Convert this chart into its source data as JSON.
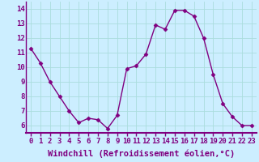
{
  "x": [
    0,
    1,
    2,
    3,
    4,
    5,
    6,
    7,
    8,
    9,
    10,
    11,
    12,
    13,
    14,
    15,
    16,
    17,
    18,
    19,
    20,
    21,
    22,
    23
  ],
  "y": [
    11.3,
    10.3,
    9.0,
    8.0,
    7.0,
    6.2,
    6.5,
    6.4,
    5.8,
    6.7,
    9.9,
    10.1,
    10.9,
    12.9,
    12.6,
    13.9,
    13.9,
    13.5,
    12.0,
    9.5,
    7.5,
    6.6,
    6.0,
    6.0
  ],
  "line_color": "#800080",
  "marker": "D",
  "markersize": 2.5,
  "linewidth": 1.0,
  "bg_color": "#cceeff",
  "grid_color": "#aadddd",
  "xlabel": "Windchill (Refroidissement éolien,°C)",
  "xlabel_fontsize": 7.5,
  "ylim": [
    5.5,
    14.5
  ],
  "xlim": [
    -0.5,
    23.5
  ],
  "yticks": [
    6,
    7,
    8,
    9,
    10,
    11,
    12,
    13,
    14
  ],
  "xticks": [
    0,
    1,
    2,
    3,
    4,
    5,
    6,
    7,
    8,
    9,
    10,
    11,
    12,
    13,
    14,
    15,
    16,
    17,
    18,
    19,
    20,
    21,
    22,
    23
  ],
  "tick_fontsize": 6.5,
  "axis_color": "#800080"
}
